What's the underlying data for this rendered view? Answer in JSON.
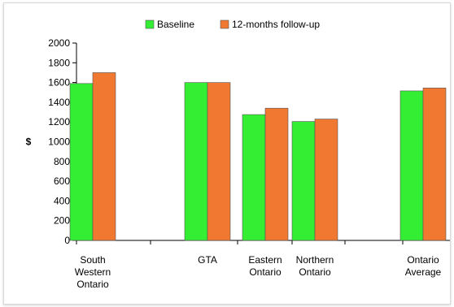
{
  "chart_data": {
    "type": "bar",
    "title": "",
    "xlabel": "",
    "ylabel": "$",
    "ylim": [
      0,
      2000
    ],
    "yticks": [
      0,
      200,
      400,
      600,
      800,
      1000,
      1200,
      1400,
      1600,
      1800,
      2000
    ],
    "grid": false,
    "legend_position": "top",
    "categories": [
      [
        "South",
        "Western",
        "Ontario"
      ],
      [
        "GTA"
      ],
      [
        "Eastern",
        "Ontario"
      ],
      [
        "Northern",
        "Ontario"
      ],
      [
        "Ontario",
        "Average"
      ]
    ],
    "series": [
      {
        "name": "Baseline",
        "color": "#33ee33",
        "values": [
          1590,
          1600,
          1275,
          1205,
          1515
        ]
      },
      {
        "name": "12-months follow-up",
        "color": "#f07830",
        "values": [
          1700,
          1600,
          1340,
          1230,
          1545
        ]
      }
    ]
  }
}
